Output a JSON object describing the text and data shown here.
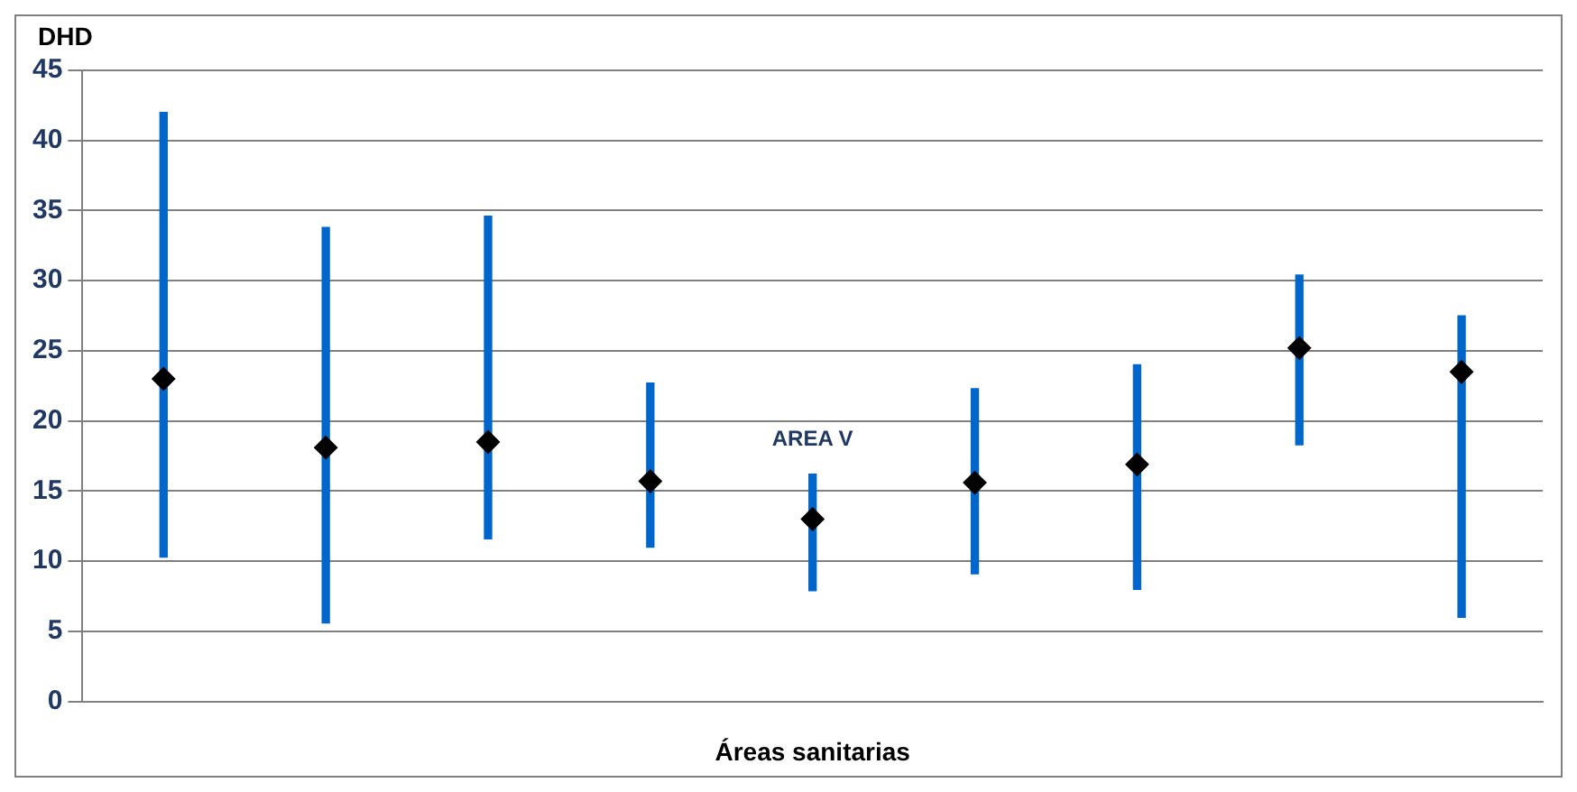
{
  "chart_data": {
    "type": "bar",
    "ylabel": "DHD",
    "xlabel": "Áreas sanitarias",
    "annotations": [
      "AREA V"
    ],
    "categories": [
      null,
      null,
      null,
      null,
      null,
      null,
      null,
      null,
      null
    ],
    "series": [
      {
        "color": "#0066cc",
        "base": [
          10.3,
          5.6,
          11.6,
          11.0,
          7.9,
          9.1,
          8.0,
          18.3,
          6.0
        ],
        "values": [
          31.7,
          28.2,
          23.0,
          11.7,
          8.3,
          13.2,
          16.0,
          12.1,
          21.5
        ]
      },
      {
        "type": "scatter",
        "color": "#000000",
        "marker": "diamond",
        "values": [
          23.0,
          18.1,
          18.5,
          15.7,
          13.0,
          15.6,
          16.9,
          25.2,
          23.5
        ]
      }
    ],
    "ylim": [
      0,
      45
    ],
    "yticks": [
      0,
      5,
      10,
      15,
      20,
      25,
      30,
      35,
      40,
      45
    ],
    "grid": "y"
  }
}
